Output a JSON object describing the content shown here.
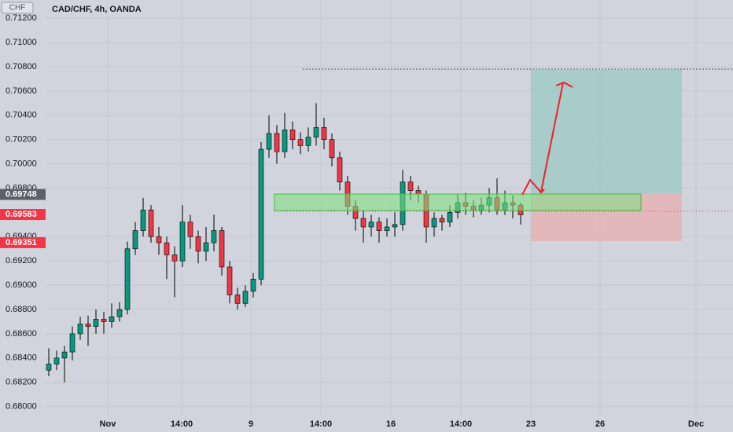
{
  "chart_data": {
    "type": "candlestick",
    "title": "CAD/CHF, 4h, OANDA",
    "currency_label": "CHF",
    "x": [
      0,
      1,
      2,
      3,
      4,
      5,
      6,
      7,
      8,
      9,
      10,
      11,
      12,
      13,
      14,
      15,
      16,
      17,
      18,
      19,
      20,
      21,
      22,
      23,
      24,
      25,
      26,
      27,
      28,
      29,
      30,
      31,
      32,
      33,
      34,
      35,
      36,
      37,
      38,
      39,
      40,
      41,
      42,
      43,
      44,
      45,
      46,
      47,
      48,
      49,
      50,
      51,
      52,
      53,
      54,
      55,
      56,
      57,
      58,
      59,
      60
    ],
    "open": [
      0.683,
      0.6835,
      0.684,
      0.6845,
      0.686,
      0.6868,
      0.6866,
      0.6872,
      0.687,
      0.6874,
      0.688,
      0.693,
      0.6945,
      0.6962,
      0.694,
      0.6935,
      0.6925,
      0.692,
      0.6952,
      0.694,
      0.6928,
      0.6935,
      0.6945,
      0.6915,
      0.6892,
      0.6885,
      0.6895,
      0.6905,
      0.7012,
      0.7025,
      0.701,
      0.7028,
      0.702,
      0.7015,
      0.7022,
      0.703,
      0.702,
      0.7005,
      0.6985,
      0.6965,
      0.6955,
      0.6948,
      0.6952,
      0.6945,
      0.6948,
      0.695,
      0.6985,
      0.6978,
      0.6975,
      0.6948,
      0.6955,
      0.6952,
      0.696,
      0.6968,
      0.6965,
      0.6962,
      0.6966,
      0.6972,
      0.6962,
      0.6968,
      0.6966
    ],
    "high": [
      0.6848,
      0.6846,
      0.685,
      0.6866,
      0.6874,
      0.6875,
      0.688,
      0.6878,
      0.6885,
      0.6886,
      0.6936,
      0.6952,
      0.6972,
      0.6966,
      0.6948,
      0.694,
      0.6932,
      0.6966,
      0.6958,
      0.6945,
      0.6948,
      0.6958,
      0.6948,
      0.692,
      0.6898,
      0.69,
      0.691,
      0.7018,
      0.704,
      0.7032,
      0.7042,
      0.7035,
      0.7026,
      0.703,
      0.705,
      0.7038,
      0.7025,
      0.701,
      0.699,
      0.697,
      0.6962,
      0.6958,
      0.6956,
      0.6955,
      0.696,
      0.6995,
      0.699,
      0.6982,
      0.6978,
      0.696,
      0.6958,
      0.6966,
      0.6975,
      0.6976,
      0.697,
      0.6972,
      0.698,
      0.6988,
      0.6978,
      0.6974,
      0.6968
    ],
    "low": [
      0.6825,
      0.683,
      0.682,
      0.6838,
      0.6855,
      0.685,
      0.686,
      0.686,
      0.6865,
      0.687,
      0.6876,
      0.6925,
      0.694,
      0.6935,
      0.6925,
      0.6905,
      0.689,
      0.6915,
      0.693,
      0.6918,
      0.692,
      0.6928,
      0.6908,
      0.6885,
      0.688,
      0.6882,
      0.689,
      0.69,
      0.7005,
      0.7,
      0.7005,
      0.7012,
      0.7008,
      0.701,
      0.7015,
      0.7012,
      0.6998,
      0.6978,
      0.6958,
      0.6945,
      0.6935,
      0.694,
      0.6935,
      0.694,
      0.694,
      0.6945,
      0.697,
      0.6968,
      0.6935,
      0.694,
      0.6945,
      0.6948,
      0.6955,
      0.6958,
      0.6956,
      0.6958,
      0.696,
      0.6958,
      0.6958,
      0.6955,
      0.695
    ],
    "close": [
      0.6835,
      0.684,
      0.6845,
      0.686,
      0.6868,
      0.6866,
      0.6872,
      0.687,
      0.6874,
      0.688,
      0.693,
      0.6945,
      0.6962,
      0.694,
      0.6935,
      0.6925,
      0.692,
      0.6952,
      0.694,
      0.6928,
      0.6935,
      0.6945,
      0.6915,
      0.6892,
      0.6885,
      0.6895,
      0.6905,
      0.7012,
      0.7025,
      0.701,
      0.7028,
      0.702,
      0.7015,
      0.7022,
      0.703,
      0.702,
      0.7005,
      0.6985,
      0.6965,
      0.6955,
      0.6948,
      0.6952,
      0.6945,
      0.6948,
      0.695,
      0.6985,
      0.6978,
      0.6975,
      0.6948,
      0.6955,
      0.6952,
      0.696,
      0.6968,
      0.6965,
      0.6962,
      0.6966,
      0.6972,
      0.6962,
      0.6968,
      0.6966,
      0.6958
    ],
    "up_color": "#089981",
    "down_color": "#f23645",
    "xlim": [
      -6.2,
      87
    ],
    "ylim": [
      0.6792,
      0.7135
    ],
    "xticks": [
      {
        "value": 7.5,
        "label": "Nov"
      },
      {
        "value": 16.9,
        "label": "14:00"
      },
      {
        "value": 25.7,
        "label": "9"
      },
      {
        "value": 34.6,
        "label": "14:00"
      },
      {
        "value": 43.5,
        "label": "16"
      },
      {
        "value": 52.4,
        "label": "14:00"
      },
      {
        "value": 61.3,
        "label": "23"
      },
      {
        "value": 70.1,
        "label": "26"
      },
      {
        "value": 82.3,
        "label": "Dec"
      }
    ],
    "yticks": [
      {
        "value": 0.68,
        "label": "0.68000"
      },
      {
        "value": 0.682,
        "label": "0.68200"
      },
      {
        "value": 0.684,
        "label": "0.68400"
      },
      {
        "value": 0.686,
        "label": "0.68600"
      },
      {
        "value": 0.688,
        "label": "0.68800"
      },
      {
        "value": 0.69,
        "label": "0.69000"
      },
      {
        "value": 0.692,
        "label": "0.69200"
      },
      {
        "value": 0.694,
        "label": "0.69400"
      },
      {
        "value": 0.698,
        "label": "0.69800"
      },
      {
        "value": 0.7,
        "label": "0.70000"
      },
      {
        "value": 0.702,
        "label": "0.70200"
      },
      {
        "value": 0.704,
        "label": "0.70400"
      },
      {
        "value": 0.706,
        "label": "0.70600"
      },
      {
        "value": 0.708,
        "label": "0.70800"
      },
      {
        "value": 0.71,
        "label": "0.71000"
      },
      {
        "value": 0.712,
        "label": "0.71200"
      }
    ],
    "price_tags": [
      {
        "value": 0.69748,
        "label": "0.69748",
        "color": "#5d606b"
      },
      {
        "value": 0.69351,
        "label": "0.69351",
        "color": "#f23645"
      },
      {
        "value": 0.69583,
        "label": "0.69583",
        "color": "#f23645"
      }
    ],
    "grid": true
  }
}
